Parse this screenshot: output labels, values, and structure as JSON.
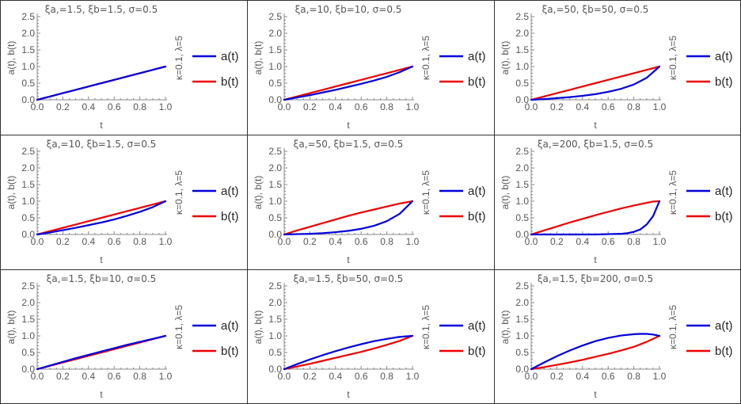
{
  "layout": {
    "rows": 3,
    "cols": 3
  },
  "colors": {
    "a": "#0000dd",
    "b": "#ee0000",
    "axis": "#888888",
    "text": "#555555"
  },
  "chart_data": [
    {
      "type": "line",
      "title": "ξa,=1.5, ξb=1.5, σ=0.5",
      "xlabel": "t",
      "ylabel": "a(t), b(t)",
      "side_label": "κ=0.1, λ=5",
      "xlim": [
        0,
        1
      ],
      "ylim": [
        0,
        2.5
      ],
      "xticks": [
        "0.0",
        "0.2",
        "0.4",
        "0.6",
        "0.8",
        "1.0"
      ],
      "yticks": [
        "0.0",
        "0.5",
        "1.0",
        "1.5",
        "2.0",
        "2.5"
      ],
      "legend": [
        "a(t)",
        "b(t)"
      ],
      "series": [
        {
          "name": "a(t)",
          "x": [
            0,
            0.1,
            0.2,
            0.3,
            0.4,
            0.5,
            0.6,
            0.7,
            0.8,
            0.9,
            1.0
          ],
          "values": [
            0,
            0.1,
            0.2,
            0.3,
            0.4,
            0.5,
            0.6,
            0.7,
            0.8,
            0.9,
            1.0
          ]
        },
        {
          "name": "b(t)",
          "x": [
            0,
            0.1,
            0.2,
            0.3,
            0.4,
            0.5,
            0.6,
            0.7,
            0.8,
            0.9,
            1.0
          ],
          "values": [
            0,
            0.1,
            0.2,
            0.3,
            0.4,
            0.5,
            0.6,
            0.7,
            0.8,
            0.9,
            1.0
          ]
        }
      ]
    },
    {
      "type": "line",
      "title": "ξa,=10, ξb=10, σ=0.5",
      "xlabel": "t",
      "ylabel": "a(t), b(t)",
      "side_label": "κ=0.1, λ=5",
      "xlim": [
        0,
        1
      ],
      "ylim": [
        0,
        2.5
      ],
      "xticks": [
        "0.0",
        "0.2",
        "0.4",
        "0.6",
        "0.8",
        "1.0"
      ],
      "yticks": [
        "0.0",
        "0.5",
        "1.0",
        "1.5",
        "2.0",
        "2.5"
      ],
      "legend": [
        "a(t)",
        "b(t)"
      ],
      "series": [
        {
          "name": "a(t)",
          "x": [
            0,
            0.1,
            0.2,
            0.3,
            0.4,
            0.5,
            0.6,
            0.7,
            0.8,
            0.9,
            1.0
          ],
          "values": [
            0,
            0.07,
            0.14,
            0.22,
            0.3,
            0.39,
            0.48,
            0.58,
            0.69,
            0.83,
            1.0
          ]
        },
        {
          "name": "b(t)",
          "x": [
            0,
            0.1,
            0.2,
            0.3,
            0.4,
            0.5,
            0.6,
            0.7,
            0.8,
            0.9,
            1.0
          ],
          "values": [
            0,
            0.1,
            0.2,
            0.3,
            0.4,
            0.5,
            0.6,
            0.7,
            0.8,
            0.9,
            1.0
          ]
        }
      ]
    },
    {
      "type": "line",
      "title": "ξa,=50, ξb=50, σ=0.5",
      "xlabel": "t",
      "ylabel": "a(t), b(t)",
      "side_label": "κ=0.1, λ=5",
      "xlim": [
        0,
        1
      ],
      "ylim": [
        0,
        2.5
      ],
      "xticks": [
        "0.0",
        "0.2",
        "0.4",
        "0.6",
        "0.8",
        "1.0"
      ],
      "yticks": [
        "0.0",
        "0.5",
        "1.0",
        "1.5",
        "2.0",
        "2.5"
      ],
      "legend": [
        "a(t)",
        "b(t)"
      ],
      "series": [
        {
          "name": "a(t)",
          "x": [
            0,
            0.1,
            0.2,
            0.3,
            0.4,
            0.5,
            0.6,
            0.7,
            0.8,
            0.9,
            1.0
          ],
          "values": [
            0,
            0.02,
            0.05,
            0.08,
            0.12,
            0.17,
            0.24,
            0.33,
            0.46,
            0.66,
            1.0
          ]
        },
        {
          "name": "b(t)",
          "x": [
            0,
            0.1,
            0.2,
            0.3,
            0.4,
            0.5,
            0.6,
            0.7,
            0.8,
            0.9,
            1.0
          ],
          "values": [
            0,
            0.1,
            0.2,
            0.3,
            0.4,
            0.5,
            0.6,
            0.7,
            0.8,
            0.9,
            1.0
          ]
        }
      ]
    },
    {
      "type": "line",
      "title": "ξa,=10, ξb=1.5, σ=0.5",
      "xlabel": "t",
      "ylabel": "a(t), b(t)",
      "side_label": "κ=0.1, λ=5",
      "xlim": [
        0,
        1
      ],
      "ylim": [
        0,
        2.5
      ],
      "xticks": [
        "0.0",
        "0.2",
        "0.4",
        "0.6",
        "0.8",
        "1.0"
      ],
      "yticks": [
        "0.0",
        "0.5",
        "1.0",
        "1.5",
        "2.0",
        "2.5"
      ],
      "legend": [
        "a(t)",
        "b(t)"
      ],
      "series": [
        {
          "name": "a(t)",
          "x": [
            0,
            0.1,
            0.2,
            0.3,
            0.4,
            0.5,
            0.6,
            0.7,
            0.8,
            0.9,
            1.0
          ],
          "values": [
            0,
            0.06,
            0.13,
            0.2,
            0.28,
            0.36,
            0.45,
            0.56,
            0.68,
            0.82,
            1.0
          ]
        },
        {
          "name": "b(t)",
          "x": [
            0,
            0.1,
            0.2,
            0.3,
            0.4,
            0.5,
            0.6,
            0.7,
            0.8,
            0.9,
            1.0
          ],
          "values": [
            0,
            0.1,
            0.2,
            0.3,
            0.4,
            0.5,
            0.6,
            0.7,
            0.8,
            0.9,
            1.0
          ]
        }
      ]
    },
    {
      "type": "line",
      "title": "ξa,=50, ξb=1.5, σ=0.5",
      "xlabel": "t",
      "ylabel": "a(t), b(t)",
      "side_label": "κ=0.1, λ=5",
      "xlim": [
        0,
        1
      ],
      "ylim": [
        0,
        2.5
      ],
      "xticks": [
        "0.0",
        "0.2",
        "0.4",
        "0.6",
        "0.8",
        "1.0"
      ],
      "yticks": [
        "0.0",
        "0.5",
        "1.0",
        "1.5",
        "2.0",
        "2.5"
      ],
      "legend": [
        "a(t)",
        "b(t)"
      ],
      "series": [
        {
          "name": "a(t)",
          "x": [
            0,
            0.1,
            0.2,
            0.3,
            0.4,
            0.5,
            0.6,
            0.7,
            0.8,
            0.9,
            1.0
          ],
          "values": [
            0,
            0.01,
            0.02,
            0.04,
            0.07,
            0.11,
            0.17,
            0.26,
            0.4,
            0.62,
            1.0
          ]
        },
        {
          "name": "b(t)",
          "x": [
            0,
            0.1,
            0.2,
            0.3,
            0.4,
            0.5,
            0.6,
            0.7,
            0.8,
            0.9,
            1.0
          ],
          "values": [
            0,
            0.12,
            0.23,
            0.34,
            0.45,
            0.56,
            0.66,
            0.75,
            0.84,
            0.93,
            1.0
          ]
        }
      ]
    },
    {
      "type": "line",
      "title": "ξa,=200, ξb=1.5, σ=0.5",
      "xlabel": "t",
      "ylabel": "a(t), b(t)",
      "side_label": "κ=0.1, λ=5",
      "xlim": [
        0,
        1
      ],
      "ylim": [
        0,
        2.5
      ],
      "xticks": [
        "0.0",
        "0.2",
        "0.4",
        "0.6",
        "0.8",
        "1.0"
      ],
      "yticks": [
        "0.0",
        "0.5",
        "1.0",
        "1.5",
        "2.0",
        "2.5"
      ],
      "legend": [
        "a(t)",
        "b(t)"
      ],
      "series": [
        {
          "name": "a(t)",
          "x": [
            0,
            0.1,
            0.2,
            0.3,
            0.4,
            0.5,
            0.6,
            0.7,
            0.75,
            0.8,
            0.85,
            0.9,
            0.95,
            1.0
          ],
          "values": [
            0,
            0,
            0,
            0,
            0,
            0,
            0.01,
            0.02,
            0.04,
            0.08,
            0.15,
            0.3,
            0.55,
            1.0
          ]
        },
        {
          "name": "b(t)",
          "x": [
            0,
            0.1,
            0.2,
            0.3,
            0.4,
            0.5,
            0.6,
            0.7,
            0.8,
            0.9,
            0.95,
            1.0
          ],
          "values": [
            0,
            0.12,
            0.24,
            0.36,
            0.47,
            0.58,
            0.68,
            0.78,
            0.87,
            0.95,
            0.99,
            1.0
          ]
        }
      ]
    },
    {
      "type": "line",
      "title": "ξa,=1.5, ξb=10, σ=0.5",
      "xlabel": "t",
      "ylabel": "a(t), b(t)",
      "side_label": "κ=0.1, λ=5",
      "xlim": [
        0,
        1
      ],
      "ylim": [
        0,
        2.5
      ],
      "xticks": [
        "0.0",
        "0.2",
        "0.4",
        "0.6",
        "0.8",
        "1.0"
      ],
      "yticks": [
        "0.0",
        "0.5",
        "1.0",
        "1.5",
        "2.0",
        "2.5"
      ],
      "legend": [
        "a(t)",
        "b(t)"
      ],
      "series": [
        {
          "name": "a(t)",
          "x": [
            0,
            0.1,
            0.2,
            0.3,
            0.4,
            0.5,
            0.6,
            0.7,
            0.8,
            0.9,
            1.0
          ],
          "values": [
            0,
            0.11,
            0.22,
            0.33,
            0.43,
            0.53,
            0.63,
            0.73,
            0.82,
            0.91,
            1.0
          ]
        },
        {
          "name": "b(t)",
          "x": [
            0,
            0.1,
            0.2,
            0.3,
            0.4,
            0.5,
            0.6,
            0.7,
            0.8,
            0.9,
            1.0
          ],
          "values": [
            0,
            0.1,
            0.2,
            0.3,
            0.4,
            0.5,
            0.6,
            0.7,
            0.8,
            0.9,
            1.0
          ]
        }
      ]
    },
    {
      "type": "line",
      "title": "ξa,=1.5, ξb=50, σ=0.5",
      "xlabel": "t",
      "ylabel": "a(t), b(t)",
      "side_label": "κ=0.1, λ=5",
      "xlim": [
        0,
        1
      ],
      "ylim": [
        0,
        2.5
      ],
      "xticks": [
        "0.0",
        "0.2",
        "0.4",
        "0.6",
        "0.8",
        "1.0"
      ],
      "yticks": [
        "0.0",
        "0.5",
        "1.0",
        "1.5",
        "2.0",
        "2.5"
      ],
      "legend": [
        "a(t)",
        "b(t)"
      ],
      "series": [
        {
          "name": "a(t)",
          "x": [
            0,
            0.1,
            0.2,
            0.3,
            0.4,
            0.5,
            0.6,
            0.7,
            0.8,
            0.9,
            1.0
          ],
          "values": [
            0,
            0.15,
            0.29,
            0.42,
            0.54,
            0.65,
            0.75,
            0.84,
            0.91,
            0.97,
            1.0
          ]
        },
        {
          "name": "b(t)",
          "x": [
            0,
            0.1,
            0.2,
            0.3,
            0.4,
            0.5,
            0.6,
            0.7,
            0.8,
            0.9,
            1.0
          ],
          "values": [
            0,
            0.08,
            0.16,
            0.25,
            0.34,
            0.43,
            0.52,
            0.62,
            0.73,
            0.85,
            1.0
          ]
        }
      ]
    },
    {
      "type": "line",
      "title": "ξa,=1.5, ξb=200, σ=0.5",
      "xlabel": "t",
      "ylabel": "a(t), b(t)",
      "side_label": "κ=0.1, λ=5",
      "xlim": [
        0,
        1
      ],
      "ylim": [
        0,
        2.5
      ],
      "xticks": [
        "0.0",
        "0.2",
        "0.4",
        "0.6",
        "0.8",
        "1.0"
      ],
      "yticks": [
        "0.0",
        "0.5",
        "1.0",
        "1.5",
        "2.0",
        "2.5"
      ],
      "legend": [
        "a(t)",
        "b(t)"
      ],
      "series": [
        {
          "name": "a(t)",
          "x": [
            0,
            0.1,
            0.2,
            0.3,
            0.4,
            0.5,
            0.6,
            0.7,
            0.8,
            0.85,
            0.9,
            0.95,
            1.0
          ],
          "values": [
            0,
            0.2,
            0.39,
            0.56,
            0.71,
            0.84,
            0.94,
            1.01,
            1.05,
            1.06,
            1.06,
            1.04,
            1.0
          ]
        },
        {
          "name": "b(t)",
          "x": [
            0,
            0.1,
            0.2,
            0.3,
            0.4,
            0.5,
            0.6,
            0.7,
            0.8,
            0.9,
            1.0
          ],
          "values": [
            0,
            0.06,
            0.13,
            0.2,
            0.28,
            0.37,
            0.46,
            0.56,
            0.67,
            0.82,
            1.0
          ]
        }
      ]
    }
  ]
}
